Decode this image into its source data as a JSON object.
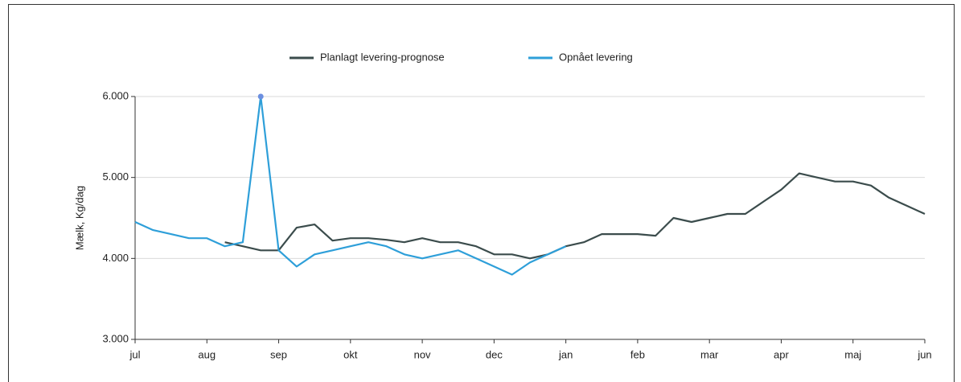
{
  "chart_data": {
    "type": "line",
    "y_label": "Mælk, Kg/dag",
    "categories": [
      "jul",
      null,
      null,
      null,
      "aug",
      null,
      null,
      null,
      "sep",
      null,
      null,
      null,
      "okt",
      null,
      null,
      null,
      "nov",
      null,
      null,
      null,
      "dec",
      null,
      null,
      null,
      "jan",
      null,
      null,
      null,
      "feb",
      null,
      null,
      null,
      "mar",
      null,
      null,
      null,
      "apr",
      null,
      null,
      null,
      "maj",
      null,
      null,
      null,
      "jun"
    ],
    "series": [
      {
        "name": "Planlagt levering-prognose",
        "color": "#3b4c4c",
        "values": [
          null,
          null,
          null,
          null,
          null,
          4200,
          4150,
          4100,
          4100,
          4380,
          4420,
          4220,
          4250,
          4250,
          4230,
          4200,
          4250,
          4200,
          4200,
          4150,
          4050,
          4050,
          4000,
          4050,
          4150,
          4200,
          4300,
          4300,
          4300,
          4280,
          4500,
          4450,
          4500,
          4550,
          4550,
          4700,
          4850,
          5050,
          5000,
          4950,
          4950,
          4900,
          4750,
          4650,
          4550
        ]
      },
      {
        "name": "Opnået levering",
        "color": "#2e9fd9",
        "values": [
          4450,
          4350,
          4300,
          4250,
          4250,
          4150,
          4200,
          6000,
          4100,
          3900,
          4050,
          4100,
          4150,
          4200,
          4150,
          4050,
          4000,
          4050,
          4100,
          4000,
          3900,
          3800,
          3950,
          4050,
          4150,
          null,
          null,
          null,
          null,
          null,
          null,
          null,
          null,
          null,
          null,
          null,
          null,
          null,
          null,
          null,
          null,
          null,
          null,
          null,
          null
        ]
      }
    ],
    "ylim": [
      3000,
      6000
    ],
    "yticks": [
      {
        "value": 3000,
        "label": "3.000"
      },
      {
        "value": 4000,
        "label": "4.000"
      },
      {
        "value": 5000,
        "label": "5.000"
      },
      {
        "value": 6000,
        "label": "6.000"
      }
    ],
    "grid": true,
    "legend": "top"
  }
}
